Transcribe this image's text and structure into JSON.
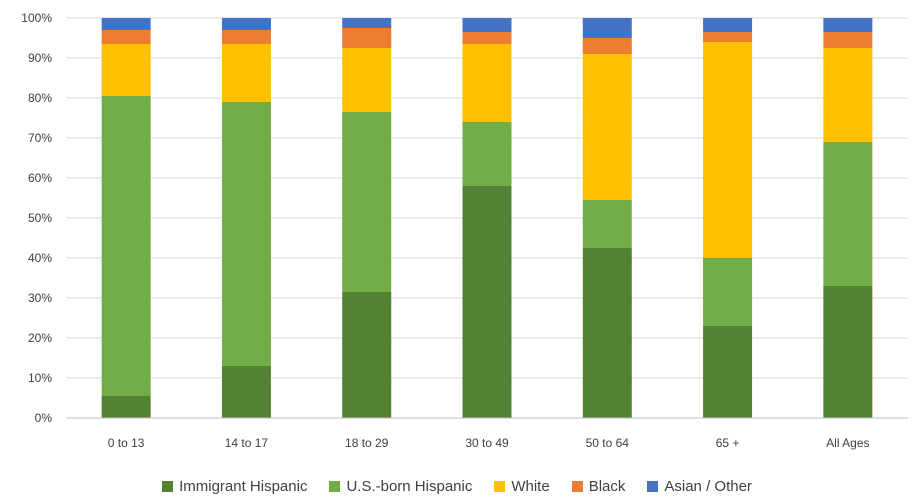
{
  "chart_data": {
    "type": "bar",
    "stacked": true,
    "categories": [
      "0 to 13",
      "14 to 17",
      "18 to 29",
      "30 to 49",
      "50 to 64",
      "65 +",
      "All Ages"
    ],
    "series": [
      {
        "name": "Immigrant Hispanic",
        "color": "#548235",
        "values": [
          5.5,
          13,
          31.5,
          58,
          42.5,
          23,
          33
        ]
      },
      {
        "name": "U.S.-born Hispanic",
        "color": "#70ad47",
        "values": [
          75,
          66,
          45,
          16,
          12,
          17,
          36
        ]
      },
      {
        "name": "White",
        "color": "#ffc000",
        "values": [
          13,
          14.5,
          16,
          19.5,
          36.5,
          54,
          23.5
        ]
      },
      {
        "name": "Black",
        "color": "#ed7d31",
        "values": [
          3.5,
          3.5,
          5,
          3,
          4,
          2.5,
          4
        ]
      },
      {
        "name": "Asian / Other",
        "color": "#4472c4",
        "values": [
          3,
          3,
          2.5,
          3.5,
          5,
          3.5,
          3.5
        ]
      }
    ],
    "y_ticks": [
      "0%",
      "10%",
      "20%",
      "30%",
      "40%",
      "50%",
      "60%",
      "70%",
      "80%",
      "90%",
      "100%"
    ],
    "ylim": [
      0,
      100
    ],
    "grid": true,
    "legend_position": "bottom",
    "title": "",
    "xlabel": "",
    "ylabel": ""
  }
}
